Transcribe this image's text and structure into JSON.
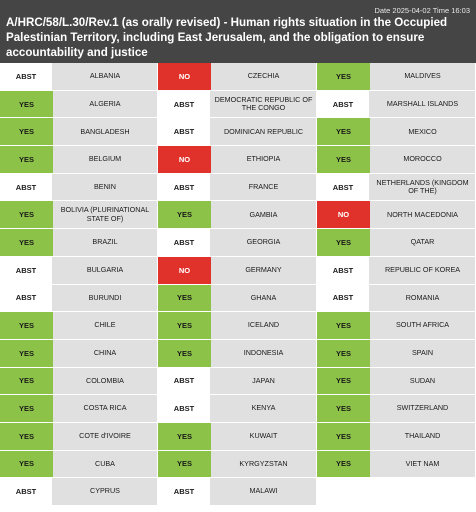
{
  "header": {
    "date_label": "Date",
    "date": "2025-04-02",
    "time_label": "Time",
    "time": "16:03",
    "title": "A/HRC/58/L.30/Rev.1 (as orally revised) - Human rights situation in the Occupied Palestinian Territory, including East Jerusalem, and the obligation to ensure accountability and justice"
  },
  "colors": {
    "header_bg": "#454545",
    "yes": "#8dc249",
    "no": "#e0322b",
    "abst": "#ffffff",
    "country_bg": "#e0e0e0"
  },
  "columns": [
    [
      {
        "vote": "ABST",
        "country": "ALBANIA"
      },
      {
        "vote": "YES",
        "country": "ALGERIA"
      },
      {
        "vote": "YES",
        "country": "BANGLADESH"
      },
      {
        "vote": "YES",
        "country": "BELGIUM"
      },
      {
        "vote": "ABST",
        "country": "BENIN"
      },
      {
        "vote": "YES",
        "country": "BOLIVIA (PLURINATIONAL STATE OF)"
      },
      {
        "vote": "YES",
        "country": "BRAZIL"
      },
      {
        "vote": "ABST",
        "country": "BULGARIA"
      },
      {
        "vote": "ABST",
        "country": "BURUNDI"
      },
      {
        "vote": "YES",
        "country": "CHILE"
      },
      {
        "vote": "YES",
        "country": "CHINA"
      },
      {
        "vote": "YES",
        "country": "COLOMBIA"
      },
      {
        "vote": "YES",
        "country": "COSTA RICA"
      },
      {
        "vote": "YES",
        "country": "COTE d'IVOIRE"
      },
      {
        "vote": "YES",
        "country": "CUBA"
      },
      {
        "vote": "ABST",
        "country": "CYPRUS"
      }
    ],
    [
      {
        "vote": "NO",
        "country": "CZECHIA"
      },
      {
        "vote": "ABST",
        "country": "DEMOCRATIC REPUBLIC OF THE CONGO"
      },
      {
        "vote": "ABST",
        "country": "DOMINICAN REPUBLIC"
      },
      {
        "vote": "NO",
        "country": "ETHIOPIA"
      },
      {
        "vote": "ABST",
        "country": "FRANCE"
      },
      {
        "vote": "YES",
        "country": "GAMBIA"
      },
      {
        "vote": "ABST",
        "country": "GEORGIA"
      },
      {
        "vote": "NO",
        "country": "GERMANY"
      },
      {
        "vote": "YES",
        "country": "GHANA"
      },
      {
        "vote": "YES",
        "country": "ICELAND"
      },
      {
        "vote": "YES",
        "country": "INDONESIA"
      },
      {
        "vote": "ABST",
        "country": "JAPAN"
      },
      {
        "vote": "ABST",
        "country": "KENYA"
      },
      {
        "vote": "YES",
        "country": "KUWAIT"
      },
      {
        "vote": "YES",
        "country": "KYRGYZSTAN"
      },
      {
        "vote": "ABST",
        "country": "MALAWI"
      }
    ],
    [
      {
        "vote": "YES",
        "country": "MALDIVES"
      },
      {
        "vote": "ABST",
        "country": "MARSHALL ISLANDS"
      },
      {
        "vote": "YES",
        "country": "MEXICO"
      },
      {
        "vote": "YES",
        "country": "MOROCCO"
      },
      {
        "vote": "ABST",
        "country": "NETHERLANDS (KINGDOM OF THE)"
      },
      {
        "vote": "NO",
        "country": "NORTH MACEDONIA"
      },
      {
        "vote": "YES",
        "country": "QATAR"
      },
      {
        "vote": "ABST",
        "country": "REPUBLIC OF KOREA"
      },
      {
        "vote": "ABST",
        "country": "ROMANIA"
      },
      {
        "vote": "YES",
        "country": "SOUTH AFRICA"
      },
      {
        "vote": "YES",
        "country": "SPAIN"
      },
      {
        "vote": "YES",
        "country": "SUDAN"
      },
      {
        "vote": "YES",
        "country": "SWITZERLAND"
      },
      {
        "vote": "YES",
        "country": "THAILAND"
      },
      {
        "vote": "YES",
        "country": "VIET NAM"
      }
    ]
  ]
}
